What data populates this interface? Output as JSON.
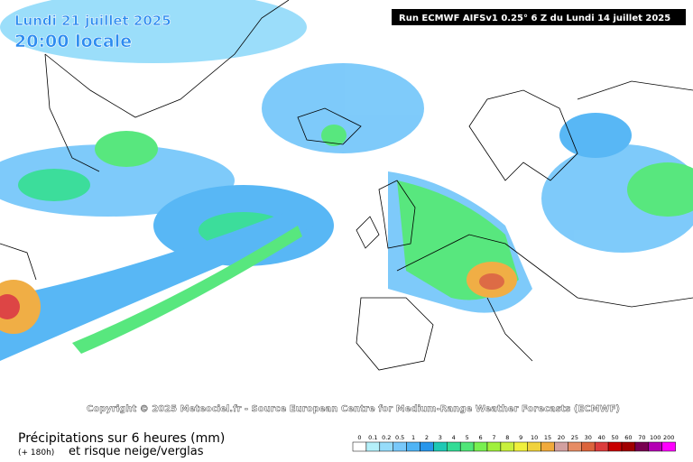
{
  "header": {
    "date": "Lundi 21 juillet 2025",
    "time": "20:00 locale",
    "run": "Run ECMWF AIFSv1 0.25° 6 Z du Lundi 14 juillet 2025"
  },
  "copyright": "Copyright © 2025 Meteociel.fr - Source European Centre for Medium-Range Weather Forecasts (ECMWF)",
  "footer": {
    "title": "Précipitations sur 6 heures (mm)",
    "lead": "(+ 180h)",
    "subtitle": "et risque neige/verglas"
  },
  "legend": [
    {
      "label": "0",
      "color": "#ffffff"
    },
    {
      "label": "0.1",
      "color": "#b4f0fa"
    },
    {
      "label": "0.2",
      "color": "#96dcfa"
    },
    {
      "label": "0.5",
      "color": "#78c8fa"
    },
    {
      "label": "1",
      "color": "#50b4f5"
    },
    {
      "label": "2",
      "color": "#2896eb"
    },
    {
      "label": "3",
      "color": "#1ec8b4"
    },
    {
      "label": "4",
      "color": "#32dc96"
    },
    {
      "label": "5",
      "color": "#50e678"
    },
    {
      "label": "6",
      "color": "#78f050"
    },
    {
      "label": "7",
      "color": "#a0f03c"
    },
    {
      "label": "8",
      "color": "#c8f03c"
    },
    {
      "label": "9",
      "color": "#f0f03c"
    },
    {
      "label": "10",
      "color": "#f0d23c"
    },
    {
      "label": "15",
      "color": "#f0aa3c"
    },
    {
      "label": "20",
      "color": "#d2a0a0"
    },
    {
      "label": "25",
      "color": "#e68c64"
    },
    {
      "label": "30",
      "color": "#dc643c"
    },
    {
      "label": "40",
      "color": "#dc3c3c"
    },
    {
      "label": "50",
      "color": "#c80000"
    },
    {
      "label": "60",
      "color": "#a00000"
    },
    {
      "label": "70",
      "color": "#780050"
    },
    {
      "label": "100",
      "color": "#b400b4"
    },
    {
      "label": "200",
      "color": "#ff00ff"
    }
  ]
}
